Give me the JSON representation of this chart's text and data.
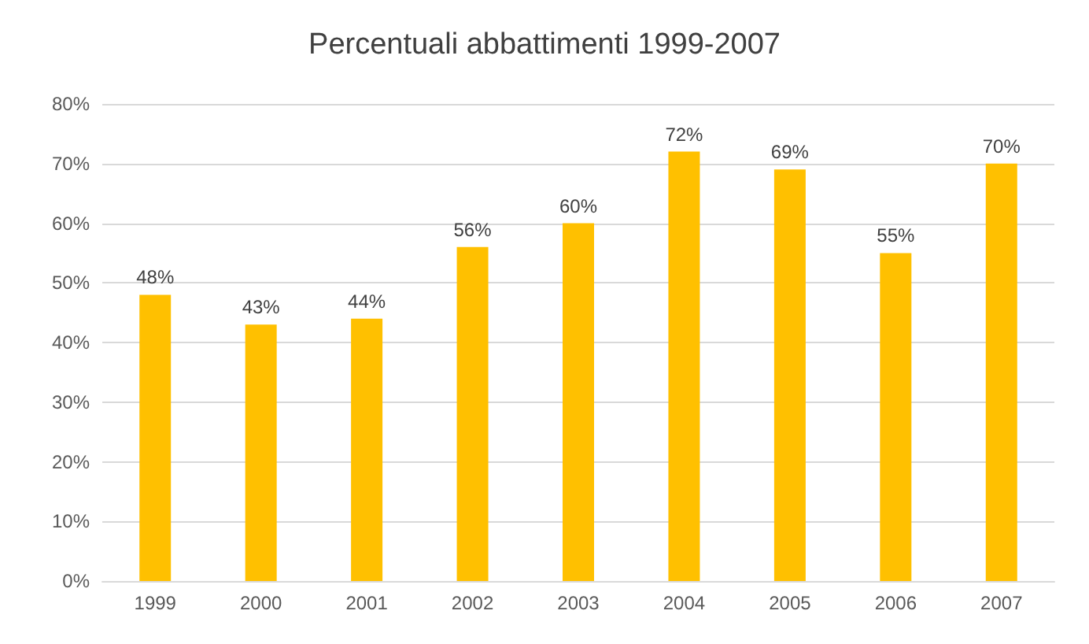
{
  "chart_data": {
    "type": "bar",
    "title": "Percentuali abbattimenti 1999-2007",
    "categories": [
      "1999",
      "2000",
      "2001",
      "2002",
      "2003",
      "2004",
      "2005",
      "2006",
      "2007"
    ],
    "values": [
      48,
      43,
      44,
      56,
      60,
      72,
      69,
      55,
      70
    ],
    "value_labels": [
      "48%",
      "43%",
      "44%",
      "56%",
      "60%",
      "72%",
      "69%",
      "55%",
      "70%"
    ],
    "color": "#ffc000",
    "ylim": [
      0,
      80
    ],
    "yticks": [
      {
        "value": 0,
        "label": "0%"
      },
      {
        "value": 10,
        "label": "10%"
      },
      {
        "value": 20,
        "label": "20%"
      },
      {
        "value": 30,
        "label": "30%"
      },
      {
        "value": 40,
        "label": "40%"
      },
      {
        "value": 50,
        "label": "50%"
      },
      {
        "value": 60,
        "label": "60%"
      },
      {
        "value": 70,
        "label": "70%"
      },
      {
        "value": 80,
        "label": "80%"
      }
    ],
    "grid": "y"
  }
}
